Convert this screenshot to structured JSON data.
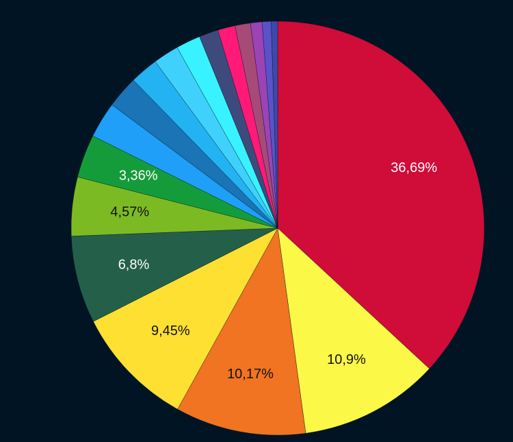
{
  "chart_data": {
    "type": "pie",
    "title": "",
    "start_angle_deg": 0,
    "direction": "clockwise",
    "slices": [
      {
        "value": 36.69,
        "label": "36,69%",
        "color": "#d00c38",
        "label_color": "#ffffff"
      },
      {
        "value": 10.9,
        "label": "10,9%",
        "color": "#fcf847",
        "label_color": "#111111"
      },
      {
        "value": 10.17,
        "label": "10,17%",
        "color": "#f07421",
        "label_color": "#111111"
      },
      {
        "value": 9.45,
        "label": "9,45%",
        "color": "#fde032",
        "label_color": "#111111"
      },
      {
        "value": 6.8,
        "label": "6,8%",
        "color": "#245f4a",
        "label_color": "#ffffff"
      },
      {
        "value": 4.57,
        "label": "4,57%",
        "color": "#7cba24",
        "label_color": "#111111"
      },
      {
        "value": 3.36,
        "label": "3,36%",
        "color": "#159c3a",
        "label_color": "#ffffff"
      },
      {
        "value": 2.8,
        "label": "",
        "color": "#1f9ff8",
        "label_color": "#ffffff"
      },
      {
        "value": 2.5,
        "label": "",
        "color": "#1a74b5",
        "label_color": "#ffffff"
      },
      {
        "value": 2.2,
        "label": "",
        "color": "#23b3f3",
        "label_color": "#ffffff"
      },
      {
        "value": 2.0,
        "label": "",
        "color": "#3fd1fb",
        "label_color": "#ffffff"
      },
      {
        "value": 1.9,
        "label": "",
        "color": "#38f3ff",
        "label_color": "#ffffff"
      },
      {
        "value": 1.5,
        "label": "",
        "color": "#3e4a7c",
        "label_color": "#ffffff"
      },
      {
        "value": 1.35,
        "label": "",
        "color": "#ff1a78",
        "label_color": "#ffffff"
      },
      {
        "value": 1.2,
        "label": "",
        "color": "#a64a78",
        "label_color": "#ffffff"
      },
      {
        "value": 0.9,
        "label": "",
        "color": "#9c43b5",
        "label_color": "#ffffff"
      },
      {
        "value": 0.7,
        "label": "",
        "color": "#5a52c9",
        "label_color": "#ffffff"
      },
      {
        "value": 0.5,
        "label": "",
        "color": "#3f48aa",
        "label_color": "#ffffff"
      }
    ]
  }
}
